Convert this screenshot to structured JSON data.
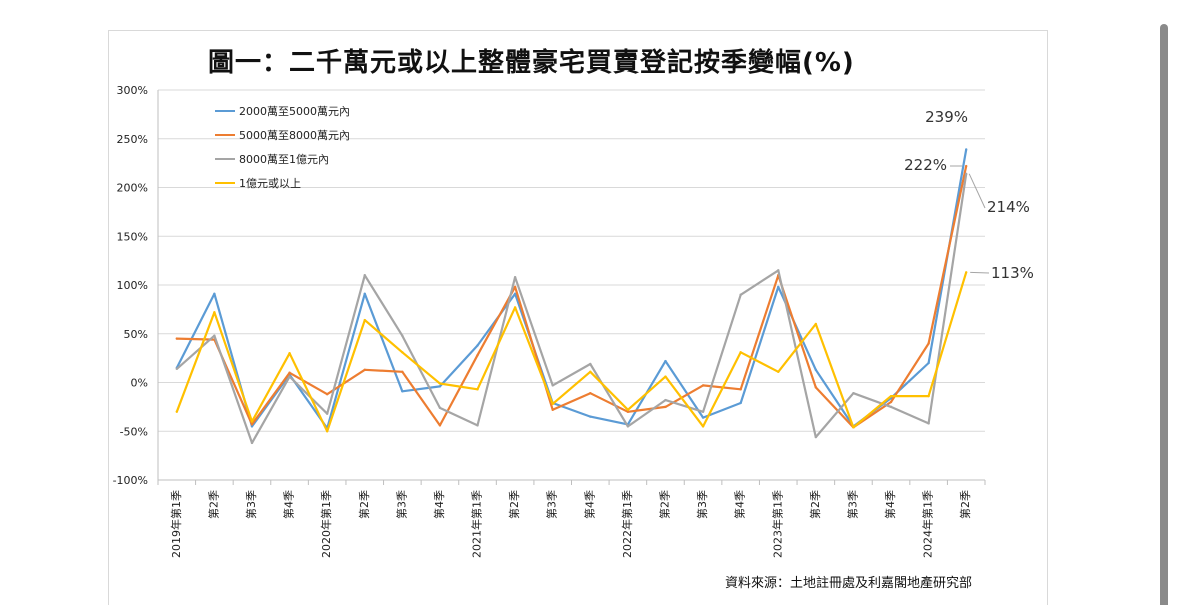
{
  "chart_data": {
    "type": "line",
    "title": "圖一：二千萬元或以上整體豪宅買賣登記按季變幅(%)",
    "source": "資料來源：土地註冊處及利嘉閣地產研究部",
    "categories": [
      "2019年第1季",
      "第2季",
      "第3季",
      "第4季",
      "2020年第1季",
      "第2季",
      "第3季",
      "第4季",
      "2021年第1季",
      "第2季",
      "第3季",
      "第4季",
      "2022年第1季",
      "第2季",
      "第3季",
      "第4季",
      "2023年第1季",
      "第2季",
      "第3季",
      "第4季",
      "2024年第1季",
      "第2季"
    ],
    "ylim": [
      -100,
      300
    ],
    "yticks": [
      -100,
      -50,
      0,
      50,
      100,
      150,
      200,
      250,
      300
    ],
    "ytick_labels": [
      "-100%",
      "-50%",
      "0%",
      "50%",
      "100%",
      "150%",
      "200%",
      "250%",
      "300%"
    ],
    "grid": true,
    "legend_position": "top-left",
    "series": [
      {
        "name": "2000萬至5000萬元內",
        "color": "#5b9bd5",
        "values": [
          15,
          91,
          -45,
          8,
          -47,
          91,
          -9,
          -4,
          38,
          91,
          -21,
          -35,
          -43,
          22,
          -36,
          -21,
          98,
          13,
          -45,
          -16,
          20,
          239
        ]
      },
      {
        "name": "5000萬至8000萬元內",
        "color": "#ed7d31",
        "values": [
          45,
          44,
          -43,
          10,
          -12,
          13,
          11,
          -44,
          28,
          98,
          -28,
          -11,
          -30,
          -25,
          -3,
          -7,
          110,
          -5,
          -46,
          -20,
          40,
          222
        ]
      },
      {
        "name": "8000萬至1億元內",
        "color": "#a5a5a5",
        "values": [
          14,
          48,
          -62,
          6,
          -32,
          110,
          48,
          -26,
          -44,
          108,
          -3,
          19,
          -45,
          -18,
          -30,
          90,
          115,
          -56,
          -11,
          -25,
          -42,
          214
        ]
      },
      {
        "name": "1億元或以上",
        "color": "#ffc000",
        "values": [
          -30,
          72,
          -40,
          30,
          -50,
          64,
          31,
          -1,
          -7,
          77,
          -22,
          11,
          -28,
          6,
          -45,
          31,
          11,
          60,
          -46,
          -14,
          -14,
          113
        ]
      }
    ],
    "annotations": [
      "239%",
      "222%",
      "214%",
      "113%"
    ]
  }
}
